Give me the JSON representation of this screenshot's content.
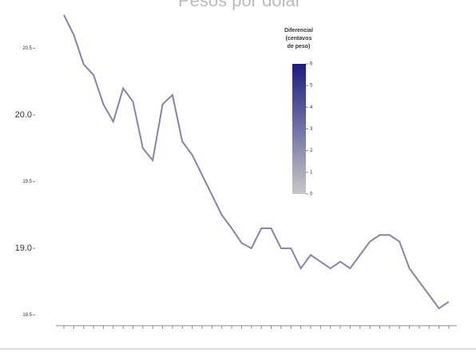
{
  "chart_data": {
    "type": "line",
    "title": "Pesos por dólar",
    "categories": [
      null,
      null,
      null,
      null,
      null,
      null,
      null,
      null,
      null,
      null,
      null,
      null,
      null,
      null,
      null,
      null,
      null,
      null,
      null,
      null,
      null,
      null,
      null,
      null,
      null,
      null,
      null,
      null,
      null,
      null,
      null,
      null,
      null,
      null,
      null,
      null,
      null,
      null,
      null,
      null
    ],
    "values": [
      20.75,
      20.6,
      20.38,
      20.3,
      20.08,
      19.95,
      20.2,
      20.1,
      19.75,
      19.66,
      20.08,
      20.15,
      19.8,
      19.7,
      19.55,
      19.4,
      19.25,
      19.15,
      19.04,
      19.0,
      19.15,
      19.15,
      19.0,
      19.0,
      18.85,
      18.95,
      18.9,
      18.85,
      18.9,
      18.85,
      18.95,
      19.05,
      19.1,
      19.1,
      19.05,
      18.85,
      18.75,
      18.65,
      18.55,
      18.6
    ],
    "color": "#8484ac",
    "ylim": [
      18.42,
      20.82
    ],
    "yticks": [
      {
        "value": 18.5,
        "label": "18.5"
      },
      {
        "value": 19,
        "label": "19.0"
      },
      {
        "value": 19.5,
        "label": "19.5"
      },
      {
        "value": 20,
        "label": "20.0"
      },
      {
        "value": 20.5,
        "label": "20.5"
      }
    ],
    "colorbar": {
      "title_lines": [
        "Diferencial",
        "(centavos",
        "de peso)"
      ],
      "ticks": [
        0,
        1,
        2,
        3,
        4,
        5,
        6
      ],
      "colors": [
        "#c8c8c8",
        "#1c1c80"
      ]
    }
  }
}
